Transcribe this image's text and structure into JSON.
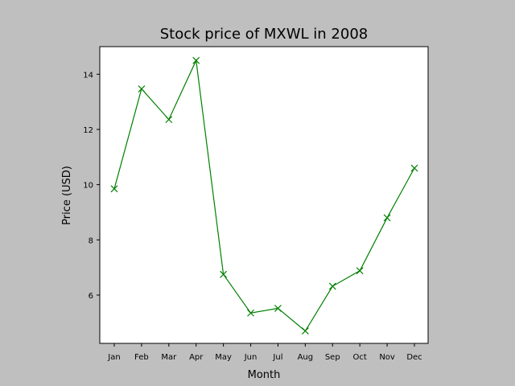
{
  "chart_data": {
    "type": "line",
    "title": "Stock price of MXWL in 2008",
    "xlabel": "Month",
    "ylabel": "Price (USD)",
    "categories": [
      "Jan",
      "Feb",
      "Mar",
      "Apr",
      "May",
      "Jun",
      "Jul",
      "Aug",
      "Sep",
      "Oct",
      "Nov",
      "Dec"
    ],
    "values": [
      9.85,
      13.47,
      12.36,
      14.5,
      6.75,
      5.35,
      5.52,
      4.7,
      6.32,
      6.88,
      8.8,
      10.6
    ],
    "yticks": [
      6,
      8,
      10,
      12,
      14
    ],
    "ylim": [
      4.25,
      15.0
    ],
    "grid": false,
    "marker": "x",
    "color": "#008000",
    "background_color": "#bfbfbf",
    "plot_background_color": "#ffffff"
  }
}
